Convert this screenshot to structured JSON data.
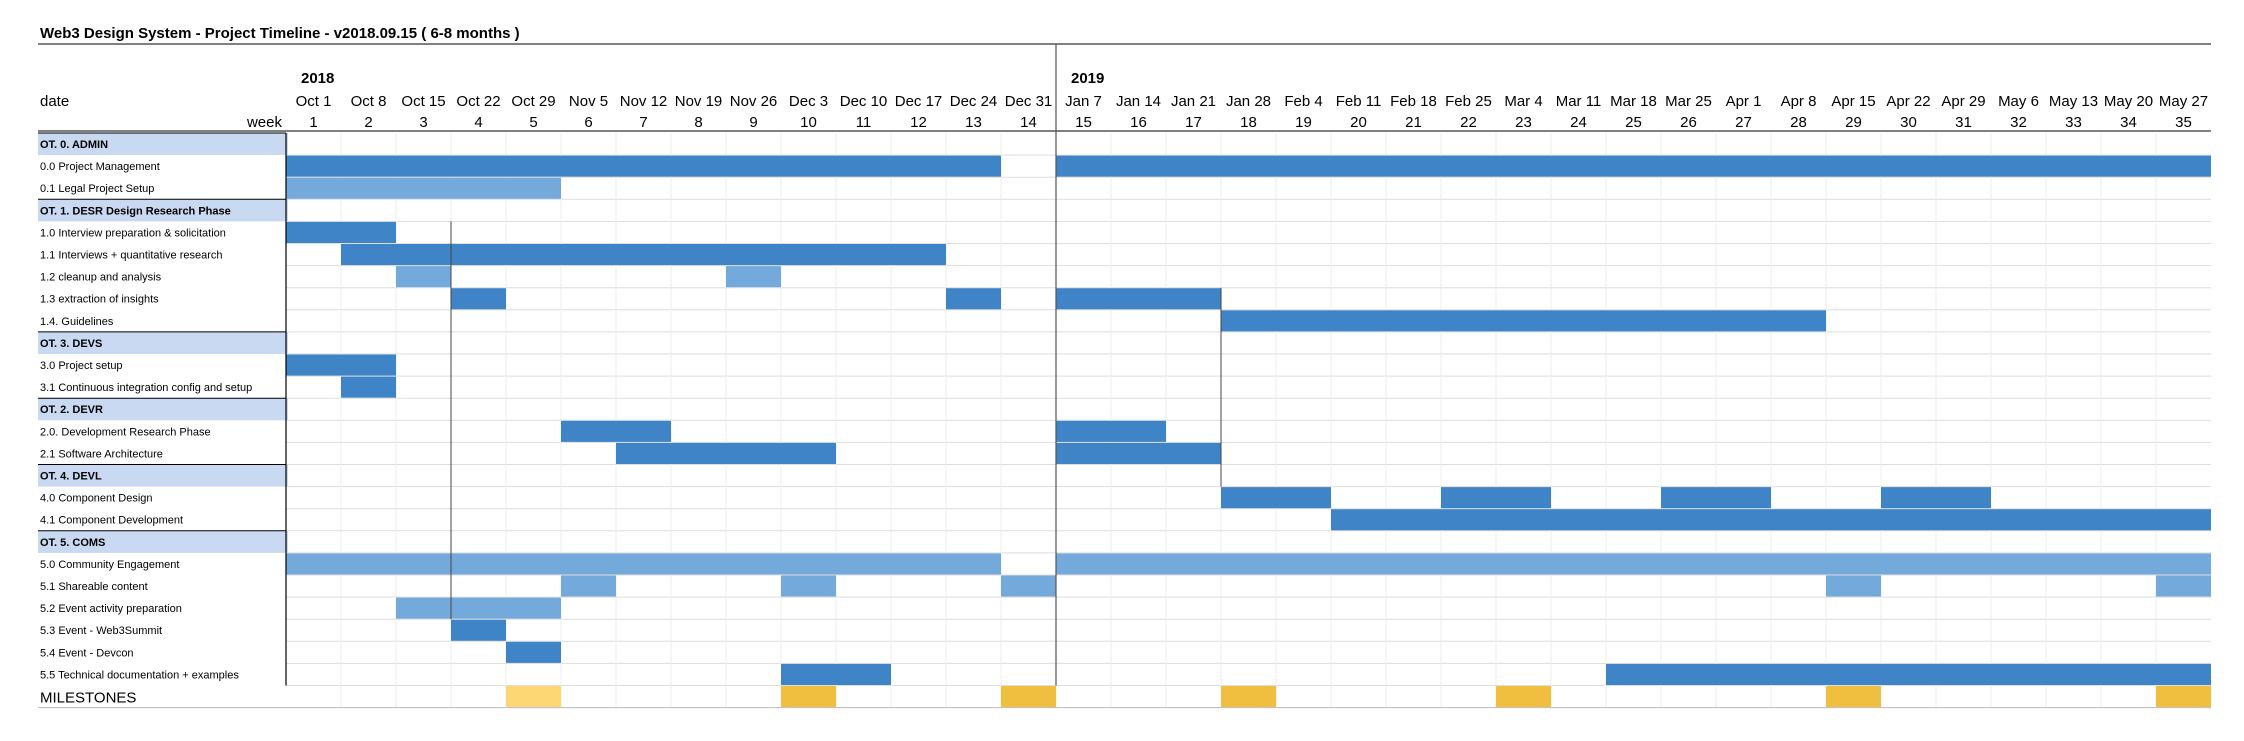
{
  "chart_data": {
    "type": "gantt",
    "title": "Web3 Design System - Project Timeline - v2018.09.15 ( 6-8 months )",
    "header": {
      "date_label": "date",
      "week_label": "week",
      "years": [
        {
          "label": "2018",
          "start_week": 1
        },
        {
          "label": "2019",
          "start_week": 15
        }
      ]
    },
    "weeks": [
      1,
      2,
      3,
      4,
      5,
      6,
      7,
      8,
      9,
      10,
      11,
      12,
      13,
      14,
      15,
      16,
      17,
      18,
      19,
      20,
      21,
      22,
      23,
      24,
      25,
      26,
      27,
      28,
      29,
      30,
      31,
      32,
      33,
      34,
      35
    ],
    "dates": [
      "Oct 1",
      "Oct 8",
      "Oct 15",
      "Oct 22",
      "Oct 29",
      "Nov 5",
      "Nov 12",
      "Nov 19",
      "Nov 26",
      "Dec 3",
      "Dec 10",
      "Dec 17",
      "Dec 24",
      "Dec 31",
      "Jan 7",
      "Jan 14",
      "Jan 21",
      "Jan 28",
      "Feb 4",
      "Feb 11",
      "Feb 18",
      "Feb 25",
      "Mar 4",
      "Mar 11",
      "Mar 18",
      "Mar 25",
      "Apr 1",
      "Apr 8",
      "Apr 15",
      "Apr 22",
      "Apr 29",
      "May 6",
      "May 13",
      "May 20",
      "May 27"
    ],
    "colors": {
      "primary": "#3f84c6",
      "secondary": "#74a9dc",
      "milestone": "#f1bf3f",
      "milestone_light": "#fdd774",
      "category_bg": "#c9d9f2"
    },
    "rows": [
      {
        "label": "OT. 0. ADMIN",
        "category": true
      },
      {
        "label": "0.0 Project Management",
        "bars": [
          {
            "start": 1,
            "end": 13,
            "color": "primary"
          },
          {
            "start": 15,
            "end": 35,
            "color": "primary"
          }
        ]
      },
      {
        "label": "0.1 Legal Project Setup",
        "bars": [
          {
            "start": 1,
            "end": 5,
            "color": "secondary"
          }
        ]
      },
      {
        "label": "OT. 1. DESR Design Research Phase",
        "category": true
      },
      {
        "label": "1.0 Interview preparation & solicitation",
        "bars": [
          {
            "start": 1,
            "end": 2,
            "color": "primary"
          }
        ]
      },
      {
        "label": "1.1 Interviews + quantitative research",
        "bars": [
          {
            "start": 2,
            "end": 12,
            "color": "primary"
          }
        ]
      },
      {
        "label": "1.2 cleanup and analysis",
        "bars": [
          {
            "start": 3,
            "end": 3,
            "color": "secondary"
          },
          {
            "start": 9,
            "end": 9,
            "color": "secondary"
          }
        ]
      },
      {
        "label": "1.3 extraction of insights",
        "bars": [
          {
            "start": 4,
            "end": 4,
            "color": "primary"
          },
          {
            "start": 13,
            "end": 13,
            "color": "primary"
          },
          {
            "start": 15,
            "end": 17,
            "color": "primary"
          }
        ]
      },
      {
        "label": "1.4. Guidelines",
        "bars": [
          {
            "start": 18,
            "end": 28,
            "color": "primary"
          }
        ]
      },
      {
        "label": "OT. 3. DEVS",
        "category": true
      },
      {
        "label": "3.0 Project setup",
        "bars": [
          {
            "start": 1,
            "end": 2,
            "color": "primary"
          }
        ]
      },
      {
        "label": "3.1 Continuous integration config and setup",
        "bars": [
          {
            "start": 2,
            "end": 2,
            "color": "primary"
          }
        ]
      },
      {
        "label": "OT. 2. DEVR",
        "category": true
      },
      {
        "label": "2.0. Development Research Phase",
        "bars": [
          {
            "start": 6,
            "end": 7,
            "color": "primary"
          },
          {
            "start": 15,
            "end": 16,
            "color": "primary"
          }
        ]
      },
      {
        "label": "2.1  Software Architecture",
        "bars": [
          {
            "start": 7,
            "end": 10,
            "color": "primary"
          },
          {
            "start": 15,
            "end": 17,
            "color": "primary"
          }
        ]
      },
      {
        "label": "OT. 4. DEVL",
        "category": true
      },
      {
        "label": "4.0 Component Design",
        "bars": [
          {
            "start": 18,
            "end": 19,
            "color": "primary"
          },
          {
            "start": 22,
            "end": 23,
            "color": "primary"
          },
          {
            "start": 26,
            "end": 27,
            "color": "primary"
          },
          {
            "start": 30,
            "end": 31,
            "color": "primary"
          }
        ]
      },
      {
        "label": "4.1 Component Development",
        "bars": [
          {
            "start": 20,
            "end": 35,
            "color": "primary"
          }
        ]
      },
      {
        "label": "OT. 5. COMS",
        "category": true
      },
      {
        "label": "5.0 Community Engagement",
        "bars": [
          {
            "start": 1,
            "end": 13,
            "color": "secondary"
          },
          {
            "start": 15,
            "end": 35,
            "color": "secondary"
          }
        ]
      },
      {
        "label": "5.1 Shareable content",
        "bars": [
          {
            "start": 6,
            "end": 6,
            "color": "secondary"
          },
          {
            "start": 10,
            "end": 10,
            "color": "secondary"
          },
          {
            "start": 14,
            "end": 14,
            "color": "secondary"
          },
          {
            "start": 29,
            "end": 29,
            "color": "secondary"
          },
          {
            "start": 35,
            "end": 35,
            "color": "secondary"
          }
        ]
      },
      {
        "label": "5.2 Event activity preparation",
        "bars": [
          {
            "start": 3,
            "end": 5,
            "color": "secondary"
          }
        ]
      },
      {
        "label": "5.3 Event - Web3Summit",
        "bars": [
          {
            "start": 4,
            "end": 4,
            "color": "primary"
          }
        ]
      },
      {
        "label": "5.4 Event - Devcon",
        "bars": [
          {
            "start": 5,
            "end": 5,
            "color": "primary"
          }
        ]
      },
      {
        "label": "5.5 Technical documentation + examples",
        "bars": [
          {
            "start": 10,
            "end": 11,
            "color": "primary"
          },
          {
            "start": 25,
            "end": 35,
            "color": "primary"
          }
        ]
      }
    ],
    "milestones": {
      "label": "MILESTONES",
      "items": [
        {
          "week": 5,
          "color": "milestone_light"
        },
        {
          "week": 10,
          "color": "milestone"
        },
        {
          "week": 14,
          "color": "milestone"
        },
        {
          "week": 18,
          "color": "milestone"
        },
        {
          "week": 23,
          "color": "milestone"
        },
        {
          "week": 29,
          "color": "milestone"
        },
        {
          "week": 35,
          "color": "milestone"
        }
      ]
    }
  }
}
